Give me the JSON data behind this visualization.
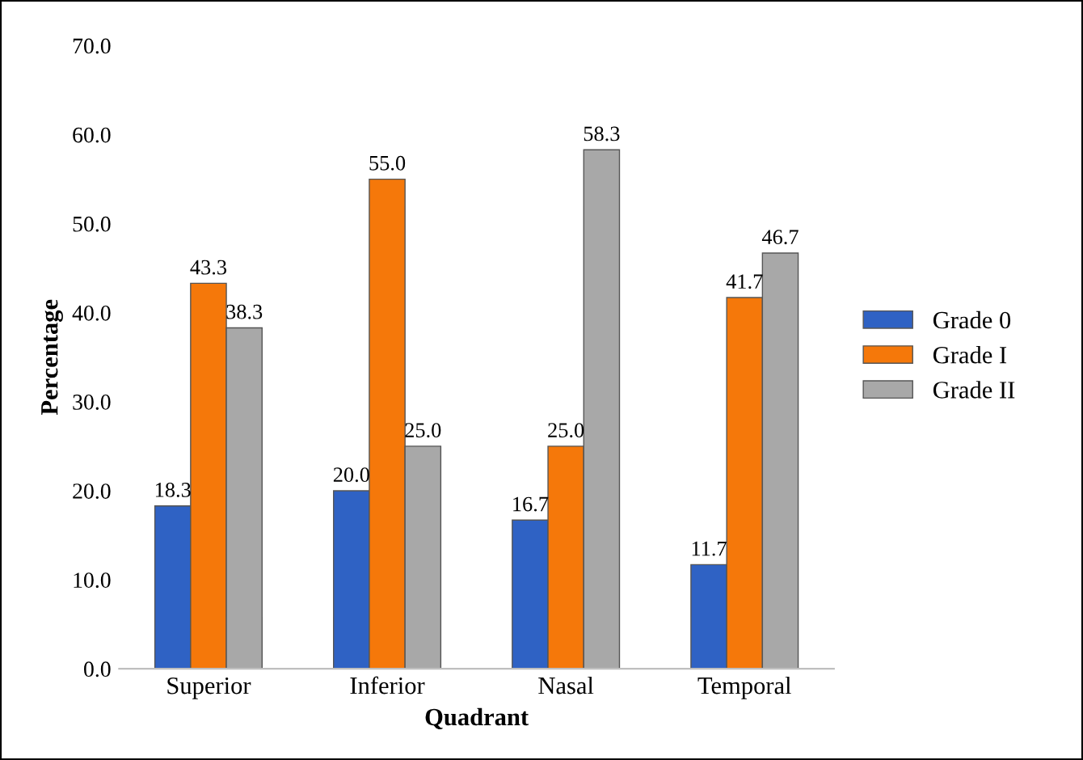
{
  "chart_data": {
    "type": "bar",
    "xlabel": "Quadrant",
    "ylabel": "Percentage",
    "categories": [
      "Superior",
      "Inferior",
      "Nasal",
      "Temporal"
    ],
    "series": [
      {
        "name": "Grade 0",
        "color": "#2f62c4",
        "values": [
          18.3,
          20.0,
          16.7,
          11.7
        ],
        "value_labels": [
          "18.3",
          "20.0",
          "16.7",
          "11.7"
        ]
      },
      {
        "name": "Grade I",
        "color": "#f5780a",
        "values": [
          43.3,
          55.0,
          25.0,
          41.7
        ],
        "value_labels": [
          "43.3",
          "55.0",
          "25.0",
          "41.7"
        ]
      },
      {
        "name": "Grade II",
        "color": "#a8a8a8",
        "values": [
          38.3,
          25.0,
          58.3,
          46.7
        ],
        "value_labels": [
          "38.3",
          "25.0",
          "58.3",
          "46.7"
        ]
      }
    ],
    "ylim": [
      0,
      70
    ],
    "yticks": [
      {
        "value": 0,
        "label": "0.0"
      },
      {
        "value": 10,
        "label": "10.0"
      },
      {
        "value": 20,
        "label": "20.0"
      },
      {
        "value": 30,
        "label": "30.0"
      },
      {
        "value": 40,
        "label": "40.0"
      },
      {
        "value": 50,
        "label": "50.0"
      },
      {
        "value": 60,
        "label": "60.0"
      },
      {
        "value": 70,
        "label": "70.0"
      }
    ],
    "grid": false,
    "legend": "right"
  }
}
